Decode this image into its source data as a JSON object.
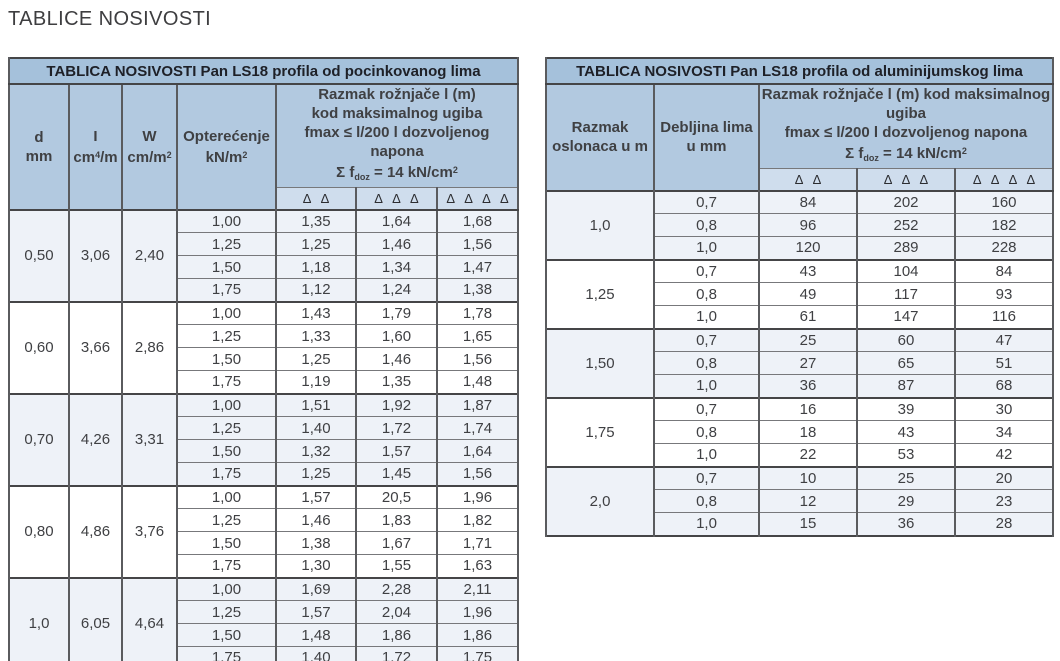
{
  "page_title": "TABLICE NOSIVOSTI",
  "colors": {
    "title_bar_bg": "#a5c1db",
    "header_bg": "#b2c9e0",
    "symbol_row_bg": "#cfdded",
    "tint_row_bg": "#eef2f8",
    "border_dark": "#454547",
    "border_mid": "#77787b",
    "text": "#3f4043"
  },
  "left_table": {
    "title": "TABLICA NOSIVOSTI Pan LS18 profila od pocinkovanog lima",
    "col_headers": {
      "d": {
        "line1": "d",
        "line2": "mm"
      },
      "i": {
        "line1": "I",
        "pre": "cm",
        "sup": "4",
        "post": "/m"
      },
      "w": {
        "line1": "W",
        "pre": "cm/m",
        "sup": "2",
        "post": ""
      },
      "load": {
        "line1": "Opterećenje",
        "pre": "kN/m",
        "sup": "2",
        "post": ""
      }
    },
    "span_header": {
      "line1": "Razmak rožnjače l (m)",
      "line2": "kod maksimalnog ugiba",
      "line3": "fmax ≤ l/200 l dozvoljenog napona",
      "sigma": {
        "pre": "Σ f",
        "sub": "doz",
        "mid": " = 14 kN/cm",
        "sup": "2"
      }
    },
    "support_symbols": [
      "Δ Δ",
      "Δ Δ Δ",
      "Δ Δ Δ Δ"
    ],
    "blocks": [
      {
        "d": "0,50",
        "moment": "3,06",
        "modulus": "2,40",
        "rows": [
          [
            "1,00",
            "1,35",
            "1,64",
            "1,68"
          ],
          [
            "1,25",
            "1,25",
            "1,46",
            "1,56"
          ],
          [
            "1,50",
            "1,18",
            "1,34",
            "1,47"
          ],
          [
            "1,75",
            "1,12",
            "1,24",
            "1,38"
          ]
        ]
      },
      {
        "d": "0,60",
        "moment": "3,66",
        "modulus": "2,86",
        "rows": [
          [
            "1,00",
            "1,43",
            "1,79",
            "1,78"
          ],
          [
            "1,25",
            "1,33",
            "1,60",
            "1,65"
          ],
          [
            "1,50",
            "1,25",
            "1,46",
            "1,56"
          ],
          [
            "1,75",
            "1,19",
            "1,35",
            "1,48"
          ]
        ]
      },
      {
        "d": "0,70",
        "moment": "4,26",
        "modulus": "3,31",
        "rows": [
          [
            "1,00",
            "1,51",
            "1,92",
            "1,87"
          ],
          [
            "1,25",
            "1,40",
            "1,72",
            "1,74"
          ],
          [
            "1,50",
            "1,32",
            "1,57",
            "1,64"
          ],
          [
            "1,75",
            "1,25",
            "1,45",
            "1,56"
          ]
        ]
      },
      {
        "d": "0,80",
        "moment": "4,86",
        "modulus": "3,76",
        "rows": [
          [
            "1,00",
            "1,57",
            "20,5",
            "1,96"
          ],
          [
            "1,25",
            "1,46",
            "1,83",
            "1,82"
          ],
          [
            "1,50",
            "1,38",
            "1,67",
            "1,71"
          ],
          [
            "1,75",
            "1,30",
            "1,55",
            "1,63"
          ]
        ]
      },
      {
        "d": "1,0",
        "moment": "6,05",
        "modulus": "4,64",
        "rows": [
          [
            "1,00",
            "1,69",
            "2,28",
            "2,11"
          ],
          [
            "1,25",
            "1,57",
            "2,04",
            "1,96"
          ],
          [
            "1,50",
            "1,48",
            "1,86",
            "1,86"
          ],
          [
            "1,75",
            "1,40",
            "1,72",
            "1,75"
          ]
        ]
      }
    ]
  },
  "right_table": {
    "title": "TABLICA NOSIVOSTI Pan LS18 profila od aluminijumskog lima",
    "col_headers": {
      "spacing": {
        "line1": "Razmak",
        "line2": "oslonaca u m"
      },
      "thickness": {
        "line1": "Debljina lima",
        "line2": "u mm"
      }
    },
    "span_header": {
      "line1": "Razmak rožnjače l (m) kod maksimalnog ugiba",
      "line2": "fmax ≤ l/200 l dozvoljenog napona",
      "sigma": {
        "pre": "Σ f",
        "sub": "doz",
        "mid": " = 14 kN/cm",
        "sup": "2"
      }
    },
    "support_symbols": [
      "Δ Δ",
      "Δ Δ Δ",
      "Δ Δ Δ Δ"
    ],
    "blocks": [
      {
        "spacing": "1,0",
        "rows": [
          [
            "0,7",
            "84",
            "202",
            "160"
          ],
          [
            "0,8",
            "96",
            "252",
            "182"
          ],
          [
            "1,0",
            "120",
            "289",
            "228"
          ]
        ]
      },
      {
        "spacing": "1,25",
        "rows": [
          [
            "0,7",
            "43",
            "104",
            "84"
          ],
          [
            "0,8",
            "49",
            "117",
            "93"
          ],
          [
            "1,0",
            "61",
            "147",
            "116"
          ]
        ]
      },
      {
        "spacing": "1,50",
        "rows": [
          [
            "0,7",
            "25",
            "60",
            "47"
          ],
          [
            "0,8",
            "27",
            "65",
            "51"
          ],
          [
            "1,0",
            "36",
            "87",
            "68"
          ]
        ]
      },
      {
        "spacing": "1,75",
        "rows": [
          [
            "0,7",
            "16",
            "39",
            "30"
          ],
          [
            "0,8",
            "18",
            "43",
            "34"
          ],
          [
            "1,0",
            "22",
            "53",
            "42"
          ]
        ]
      },
      {
        "spacing": "2,0",
        "rows": [
          [
            "0,7",
            "10",
            "25",
            "20"
          ],
          [
            "0,8",
            "12",
            "29",
            "23"
          ],
          [
            "1,0",
            "15",
            "36",
            "28"
          ]
        ]
      }
    ]
  }
}
